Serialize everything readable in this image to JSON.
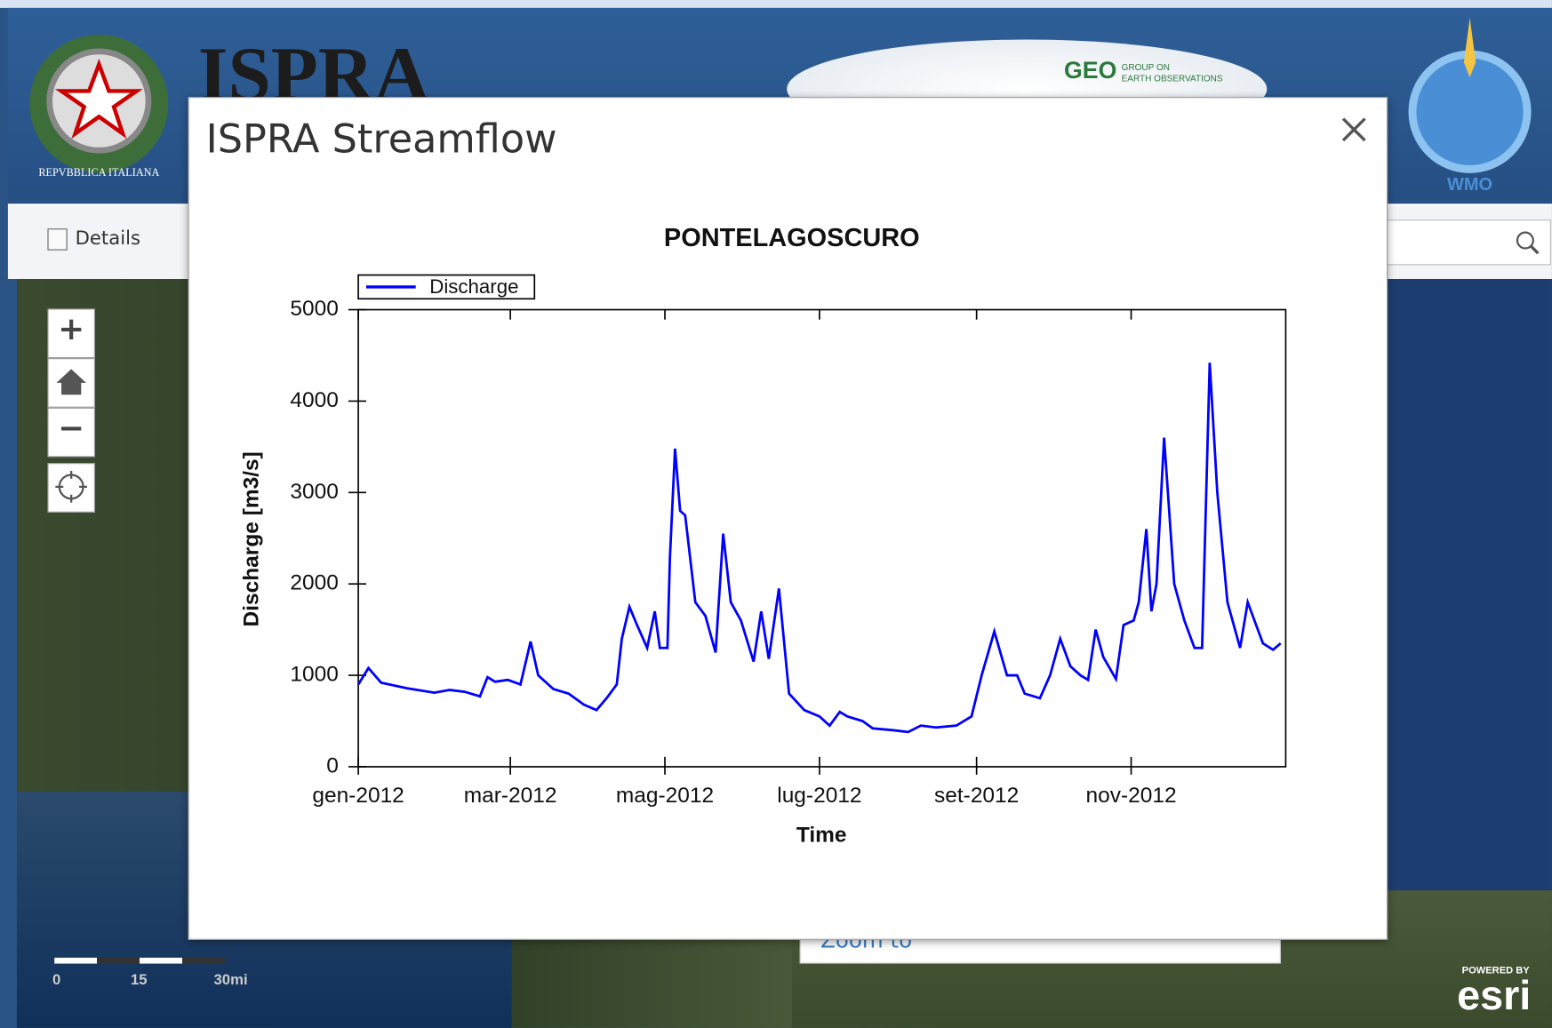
{
  "header": {
    "title": "ISPRA",
    "emblem_text": "REPVBBLICA ITALIANA",
    "geo_logo": "GEO",
    "geo_text": [
      "GROUP ON",
      "EARTH OBSERVATIONS"
    ],
    "wmo": "WMO"
  },
  "toolbar": {
    "details": "Details"
  },
  "map": {
    "scale_labels": [
      "0",
      "15",
      "30mi"
    ],
    "zoom_to": "Zoom to",
    "esri_powered": "POWERED BY",
    "esri": "esri"
  },
  "dialog": {
    "title": "ISPRA Streamflow"
  },
  "chart_data": {
    "type": "line",
    "title": "PONTELAGOSCURO",
    "xlabel": "Time",
    "ylabel": "Discharge [m3/s]",
    "legend": "top left",
    "x": [
      0,
      4,
      9,
      19,
      30,
      36,
      42,
      48,
      51,
      54,
      59,
      64,
      68,
      71,
      77,
      83,
      89,
      94,
      98,
      102,
      104,
      107,
      110,
      114,
      117,
      119,
      122,
      123,
      125,
      127,
      129,
      133,
      137,
      141,
      144,
      147,
      151,
      156,
      159,
      162,
      166,
      170,
      176,
      182,
      186,
      190,
      193,
      199,
      203,
      211,
      217,
      222,
      228,
      236,
      242,
      246,
      251,
      256,
      260,
      263,
      269,
      273,
      277,
      281,
      285,
      288,
      291,
      294,
      299,
      302,
      306,
      308,
      311,
      313,
      315,
      318,
      322,
      326,
      330,
      333,
      336,
      339,
      343,
      348,
      351,
      357,
      361,
      364
    ],
    "series": [
      {
        "name": "Discharge",
        "color": "#0000ff",
        "values": [
          900,
          1080,
          920,
          860,
          810,
          840,
          820,
          770,
          980,
          930,
          950,
          900,
          1370,
          1000,
          850,
          800,
          680,
          620,
          750,
          900,
          1400,
          1750,
          1550,
          1300,
          1700,
          1300,
          1300,
          2300,
          3480,
          2800,
          2750,
          1800,
          1650,
          1250,
          2550,
          1800,
          1600,
          1150,
          1700,
          1180,
          1950,
          800,
          620,
          550,
          450,
          600,
          550,
          500,
          420,
          400,
          380,
          450,
          430,
          450,
          550,
          1000,
          1480,
          1000,
          1000,
          800,
          750,
          1000,
          1400,
          1100,
          1000,
          950,
          1500,
          1200,
          960,
          1550,
          1600,
          1800,
          2600,
          1700,
          2000,
          3600,
          2000,
          1600,
          1300,
          1300,
          4420,
          3000,
          1800,
          1300,
          1800,
          1350,
          1280,
          1350
        ]
      }
    ],
    "xlim": [
      0,
      366
    ],
    "xticks": [
      {
        "value": 0,
        "label": "gen-2012"
      },
      {
        "value": 60,
        "label": "mar-2012"
      },
      {
        "value": 121,
        "label": "mag-2012"
      },
      {
        "value": 182,
        "label": "lug-2012"
      },
      {
        "value": 244,
        "label": "set-2012"
      },
      {
        "value": 305,
        "label": "nov-2012"
      }
    ],
    "ylim": [
      0,
      5000
    ],
    "yticks": [
      0,
      1000,
      2000,
      3000,
      4000,
      5000
    ],
    "grid": false
  }
}
